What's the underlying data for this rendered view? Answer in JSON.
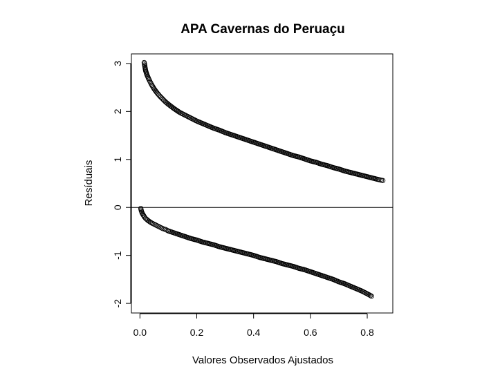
{
  "chart_data": {
    "type": "scatter",
    "title": "APA Cavernas do Peruaçu",
    "xlabel": "Valores Observados Ajustados",
    "ylabel": "Resíduais",
    "xlim": [
      -0.03,
      0.89
    ],
    "ylim": [
      -2.2,
      3.2
    ],
    "x_ticks": [
      0.0,
      0.2,
      0.4,
      0.6,
      0.8
    ],
    "x_tick_labels": [
      "0.0",
      "0.2",
      "0.4",
      "0.6",
      "0.8"
    ],
    "y_ticks": [
      -2,
      -1,
      0,
      1,
      2,
      3
    ],
    "y_tick_labels": [
      "-2",
      "-1",
      "0",
      "1",
      "2",
      "3"
    ],
    "reference_line": {
      "y": 0
    },
    "grid": false,
    "legend": "none",
    "marker": "open-circle",
    "series": [
      {
        "points": [
          [
            0.015,
            3.02
          ],
          [
            0.018,
            2.92
          ],
          [
            0.02,
            2.85
          ],
          [
            0.025,
            2.76
          ],
          [
            0.03,
            2.69
          ],
          [
            0.035,
            2.63
          ],
          [
            0.04,
            2.57
          ],
          [
            0.045,
            2.52
          ],
          [
            0.05,
            2.47
          ],
          [
            0.06,
            2.39
          ],
          [
            0.07,
            2.32
          ],
          [
            0.08,
            2.26
          ],
          [
            0.09,
            2.2
          ],
          [
            0.1,
            2.15
          ],
          [
            0.12,
            2.06
          ],
          [
            0.14,
            1.98
          ],
          [
            0.16,
            1.92
          ],
          [
            0.18,
            1.86
          ],
          [
            0.2,
            1.8
          ],
          [
            0.22,
            1.75
          ],
          [
            0.24,
            1.7
          ],
          [
            0.26,
            1.65
          ],
          [
            0.28,
            1.61
          ],
          [
            0.3,
            1.56
          ],
          [
            0.32,
            1.52
          ],
          [
            0.34,
            1.48
          ],
          [
            0.36,
            1.44
          ],
          [
            0.38,
            1.4
          ],
          [
            0.4,
            1.36
          ],
          [
            0.42,
            1.32
          ],
          [
            0.44,
            1.28
          ],
          [
            0.46,
            1.24
          ],
          [
            0.48,
            1.2
          ],
          [
            0.5,
            1.16
          ],
          [
            0.52,
            1.12
          ],
          [
            0.54,
            1.08
          ],
          [
            0.56,
            1.05
          ],
          [
            0.58,
            1.01
          ],
          [
            0.6,
            0.97
          ],
          [
            0.62,
            0.94
          ],
          [
            0.64,
            0.9
          ],
          [
            0.66,
            0.87
          ],
          [
            0.68,
            0.83
          ],
          [
            0.7,
            0.8
          ],
          [
            0.72,
            0.76
          ],
          [
            0.74,
            0.73
          ],
          [
            0.76,
            0.7
          ],
          [
            0.78,
            0.67
          ],
          [
            0.8,
            0.64
          ],
          [
            0.82,
            0.61
          ],
          [
            0.84,
            0.58
          ],
          [
            0.855,
            0.56
          ],
          [
            0.003,
            -0.02
          ],
          [
            0.005,
            -0.07
          ],
          [
            0.008,
            -0.12
          ],
          [
            0.012,
            -0.16
          ],
          [
            0.016,
            -0.2
          ],
          [
            0.02,
            -0.23
          ],
          [
            0.03,
            -0.28
          ],
          [
            0.04,
            -0.32
          ],
          [
            0.05,
            -0.35
          ],
          [
            0.06,
            -0.38
          ],
          [
            0.07,
            -0.41
          ],
          [
            0.08,
            -0.44
          ],
          [
            0.09,
            -0.46
          ],
          [
            0.1,
            -0.49
          ],
          [
            0.12,
            -0.53
          ],
          [
            0.14,
            -0.57
          ],
          [
            0.16,
            -0.61
          ],
          [
            0.18,
            -0.65
          ],
          [
            0.2,
            -0.68
          ],
          [
            0.22,
            -0.72
          ],
          [
            0.24,
            -0.75
          ],
          [
            0.26,
            -0.78
          ],
          [
            0.28,
            -0.82
          ],
          [
            0.3,
            -0.85
          ],
          [
            0.32,
            -0.88
          ],
          [
            0.34,
            -0.91
          ],
          [
            0.36,
            -0.94
          ],
          [
            0.38,
            -0.97
          ],
          [
            0.4,
            -1.0
          ],
          [
            0.42,
            -1.04
          ],
          [
            0.44,
            -1.07
          ],
          [
            0.46,
            -1.1
          ],
          [
            0.48,
            -1.13
          ],
          [
            0.5,
            -1.17
          ],
          [
            0.52,
            -1.2
          ],
          [
            0.54,
            -1.23
          ],
          [
            0.56,
            -1.27
          ],
          [
            0.58,
            -1.3
          ],
          [
            0.6,
            -1.34
          ],
          [
            0.62,
            -1.38
          ],
          [
            0.64,
            -1.42
          ],
          [
            0.66,
            -1.46
          ],
          [
            0.68,
            -1.5
          ],
          [
            0.7,
            -1.55
          ],
          [
            0.72,
            -1.59
          ],
          [
            0.74,
            -1.64
          ],
          [
            0.76,
            -1.69
          ],
          [
            0.78,
            -1.74
          ],
          [
            0.8,
            -1.8
          ],
          [
            0.815,
            -1.85
          ]
        ]
      }
    ]
  }
}
